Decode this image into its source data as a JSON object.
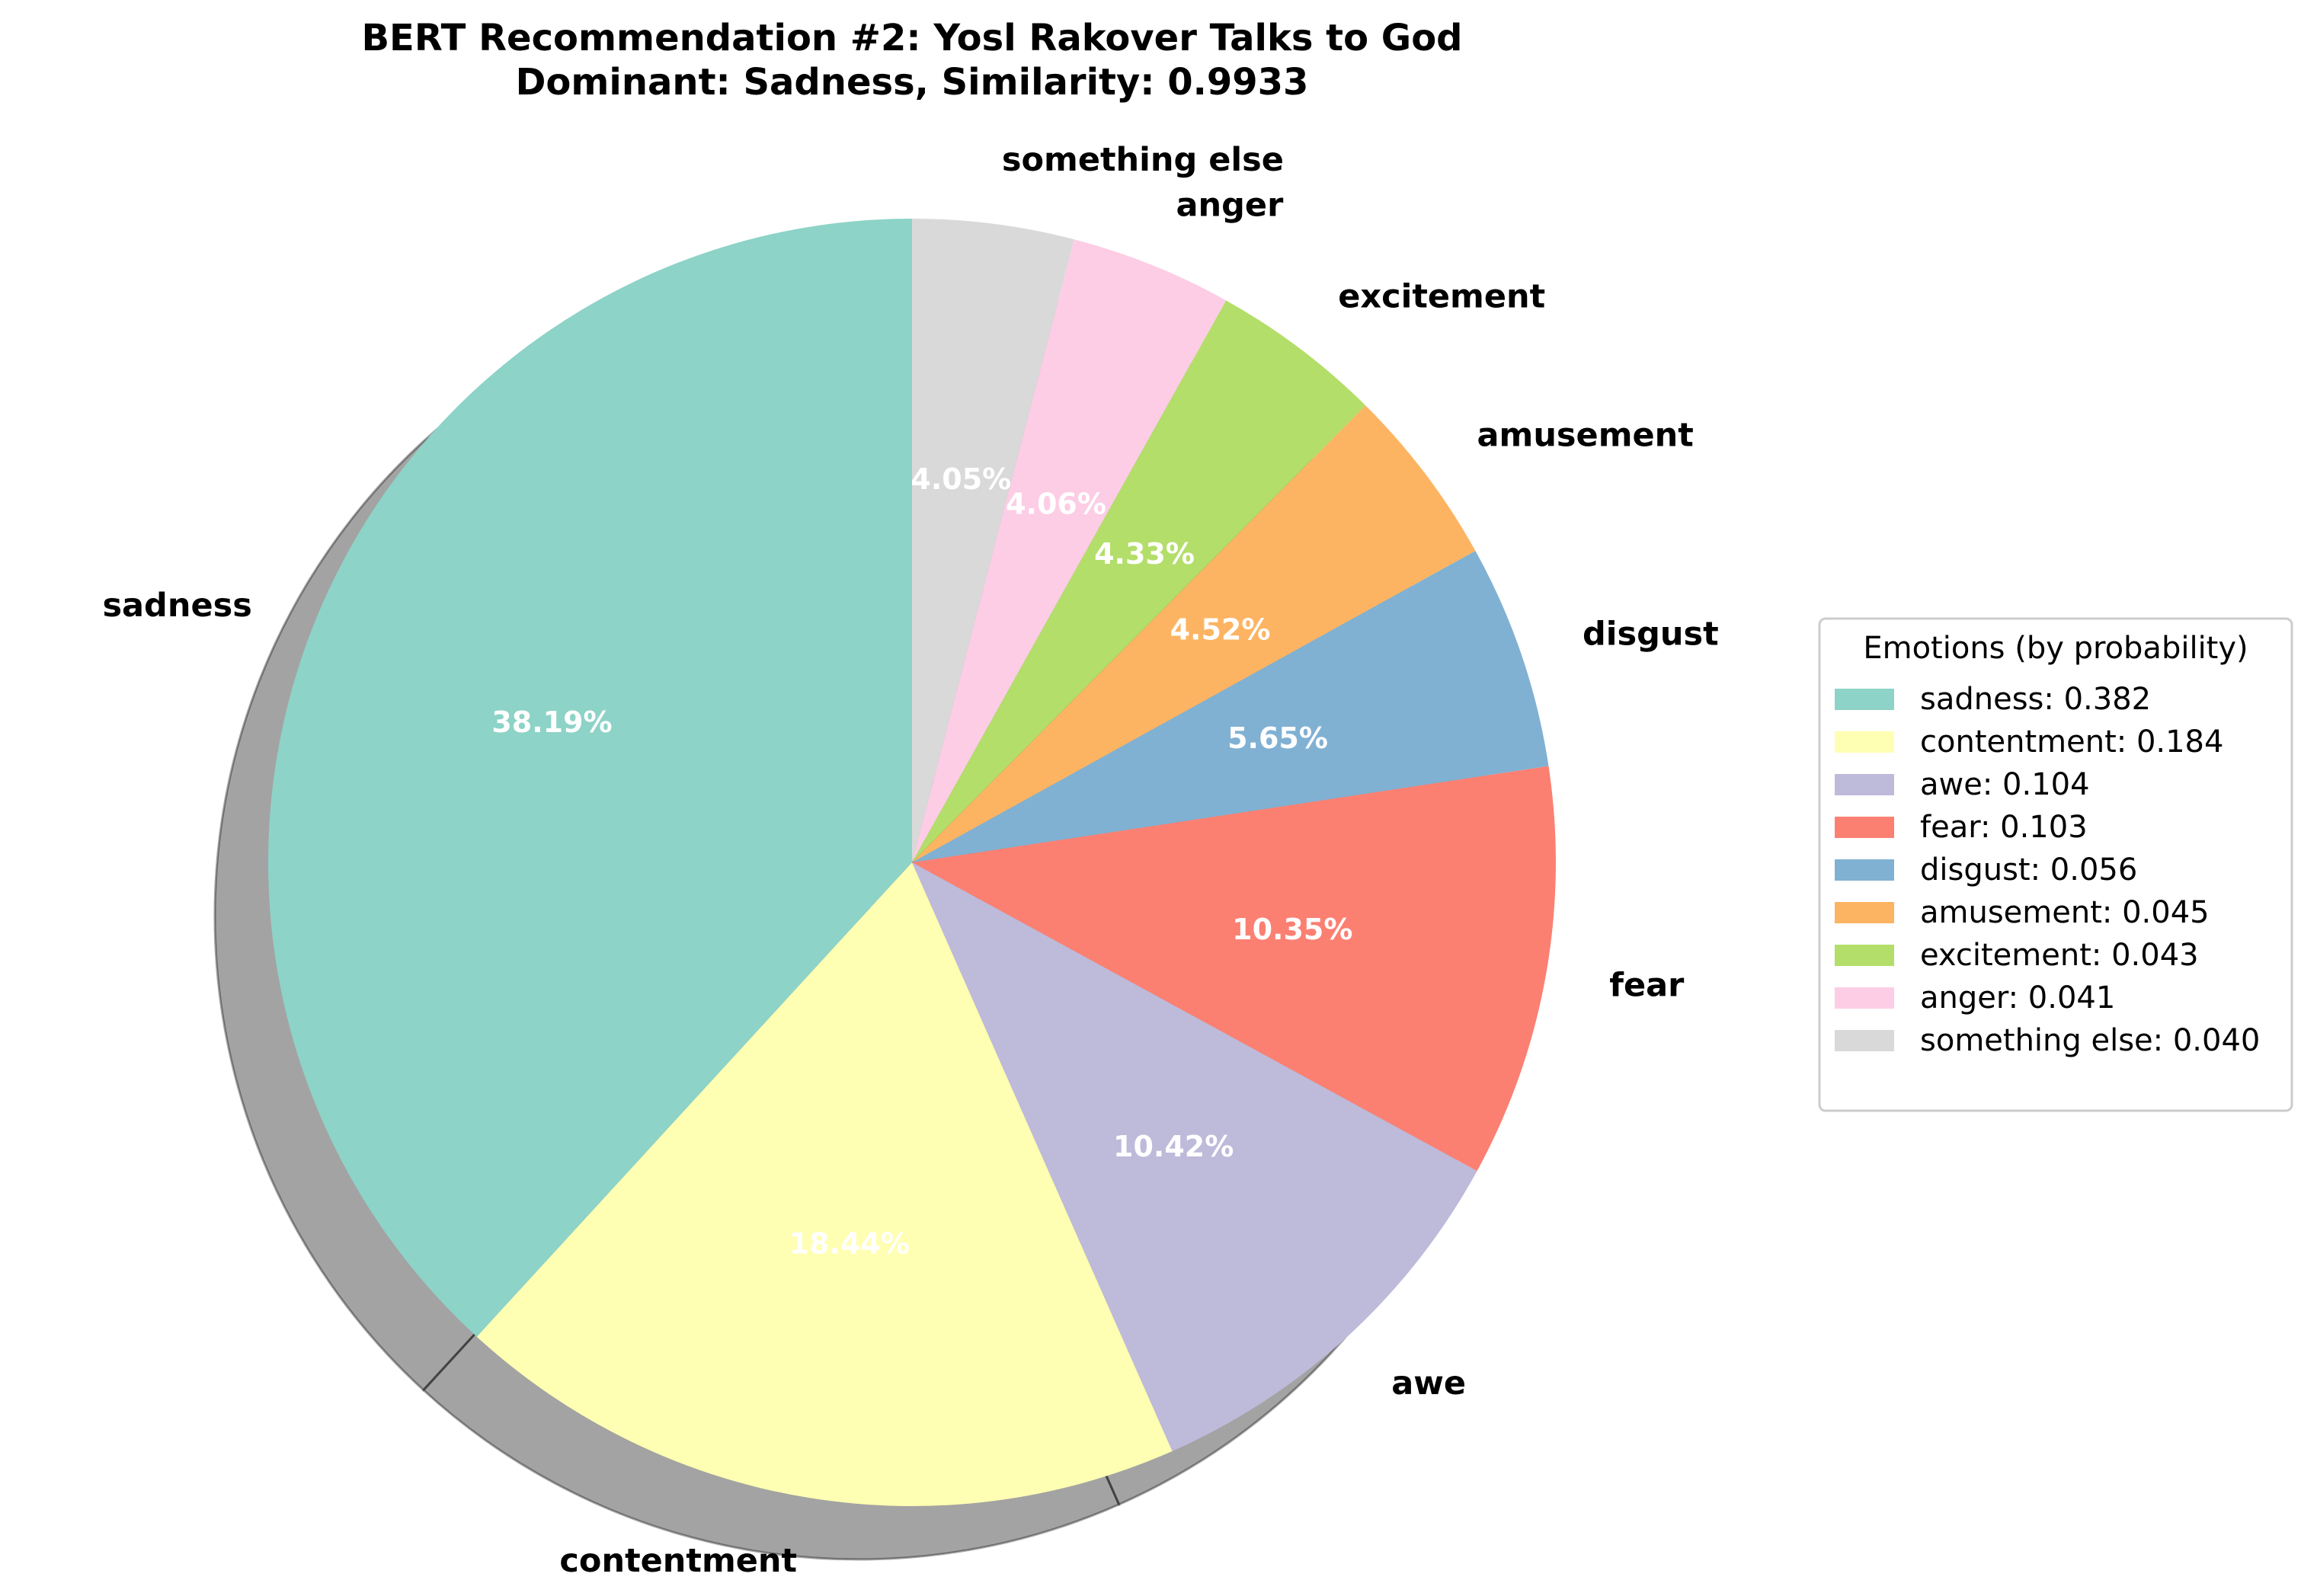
{
  "chart_data": {
    "type": "pie",
    "title": "BERT Recommendation #2: Yosl Rakover Talks to God",
    "subtitle": "Dominant: Sadness, Similarity: 0.9933",
    "start_angle_deg": 90,
    "direction": "counterclockwise",
    "shadow": true,
    "legend_title": "Emotions (by probability)",
    "legend_position": "right",
    "slices": [
      {
        "label": "sadness",
        "value": 0.3819,
        "percent_label": "38.19%",
        "legend_label": "sadness: 0.382",
        "color": "#8dd3c7"
      },
      {
        "label": "contentment",
        "value": 0.1844,
        "percent_label": "18.44%",
        "legend_label": "contentment: 0.184",
        "color": "#ffffb3"
      },
      {
        "label": "awe",
        "value": 0.1042,
        "percent_label": "10.42%",
        "legend_label": "awe: 0.104",
        "color": "#bebada"
      },
      {
        "label": "fear",
        "value": 0.1035,
        "percent_label": "10.35%",
        "legend_label": "fear: 0.103",
        "color": "#fb8072"
      },
      {
        "label": "disgust",
        "value": 0.0565,
        "percent_label": "5.65%",
        "legend_label": "disgust: 0.056",
        "color": "#80b1d3"
      },
      {
        "label": "amusement",
        "value": 0.0452,
        "percent_label": "4.52%",
        "legend_label": "amusement: 0.045",
        "color": "#fdb462"
      },
      {
        "label": "excitement",
        "value": 0.0433,
        "percent_label": "4.33%",
        "legend_label": "excitement: 0.043",
        "color": "#b3de69"
      },
      {
        "label": "anger",
        "value": 0.0406,
        "percent_label": "4.06%",
        "legend_label": "anger: 0.041",
        "color": "#fccde5"
      },
      {
        "label": "something else",
        "value": 0.0405,
        "percent_label": "4.05%",
        "legend_label": "something else: 0.040",
        "color": "#d9d9d9"
      }
    ]
  }
}
